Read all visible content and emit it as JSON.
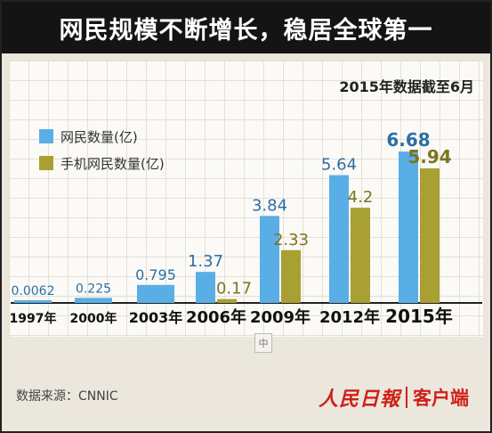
{
  "header": {
    "title": "网民规模不断增长，稳居全球第一"
  },
  "subtitle": "2015年数据截至6月",
  "legend": [
    {
      "label": "网民数量(亿)",
      "color": "#5aaee6"
    },
    {
      "label": "手机网民数量(亿)",
      "color": "#a8a032"
    }
  ],
  "footer": {
    "source": "数据来源：CNNIC"
  },
  "watermark": {
    "logo": "人民日報",
    "text": "客户端"
  },
  "center_mark": "中",
  "chart_data": {
    "type": "bar",
    "categories": [
      "1997年",
      "2000年",
      "2003年",
      "2006年",
      "2009年",
      "2012年",
      "2015年"
    ],
    "series": [
      {
        "name": "网民数量(亿)",
        "color": "#5aaee6",
        "values": [
          0.0062,
          0.225,
          0.795,
          1.37,
          3.84,
          5.64,
          6.68
        ]
      },
      {
        "name": "手机网民数量(亿)",
        "color": "#a8a032",
        "values": [
          null,
          null,
          null,
          0.17,
          2.33,
          4.2,
          5.94
        ]
      }
    ],
    "value_labels": [
      [
        "0.0062",
        "0.225",
        "0.795",
        "1.37",
        "3.84",
        "5.64",
        "6.68"
      ],
      [
        null,
        null,
        null,
        "0.17",
        "2.33",
        "4.2",
        "5.94"
      ]
    ],
    "ylim": [
      0,
      7
    ],
    "legend_position": "top-left"
  }
}
